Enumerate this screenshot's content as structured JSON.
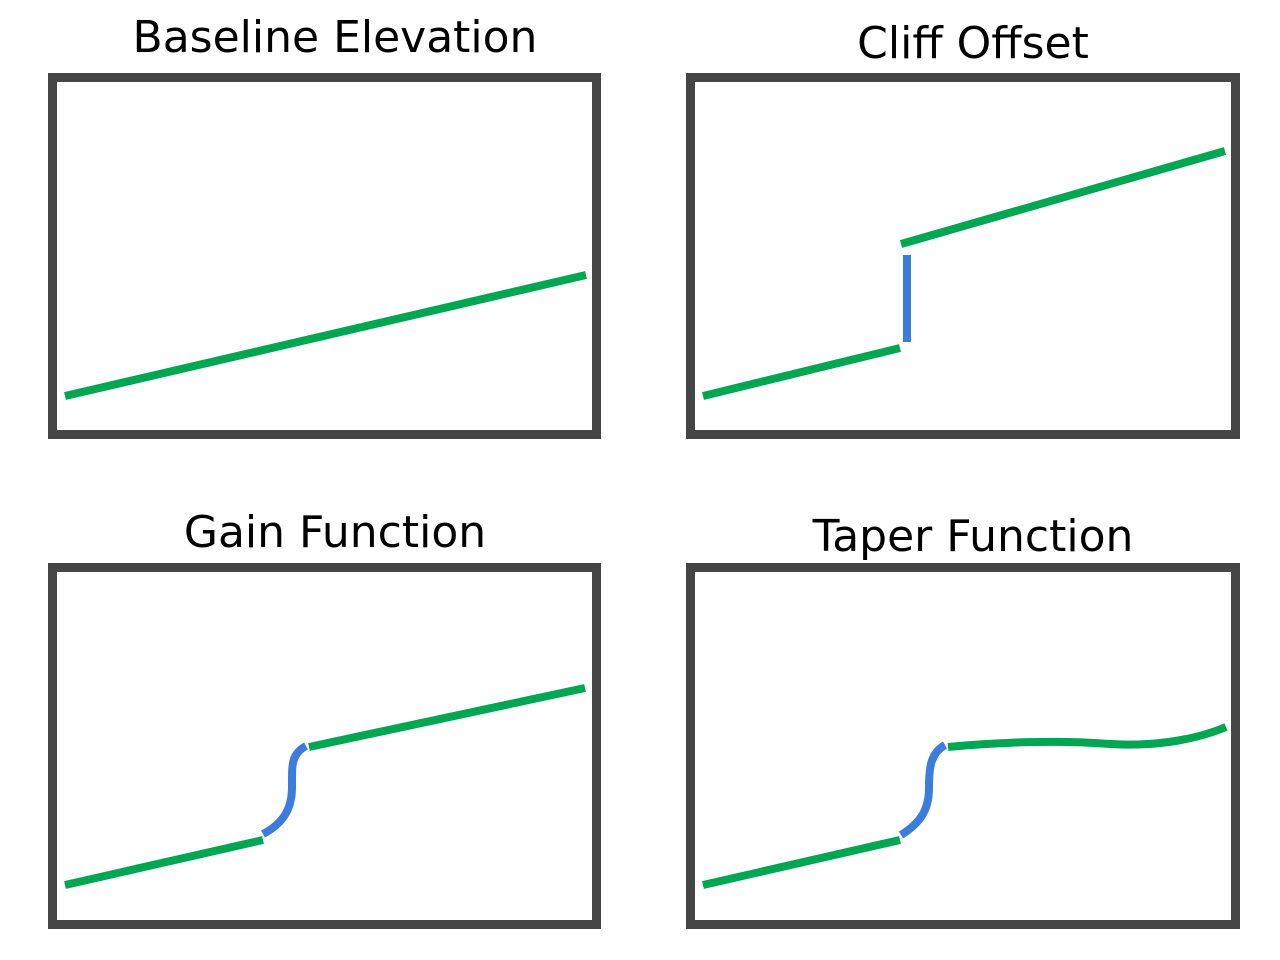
{
  "colors": {
    "frame": "#454545",
    "terrain": "#00A651",
    "feature": "#3C7DDC",
    "background": "#FFFFFF"
  },
  "panels": [
    {
      "title": "Baseline Elevation"
    },
    {
      "title": "Cliff Offset"
    },
    {
      "title": "Gain Function"
    },
    {
      "title": "Taper Function"
    }
  ]
}
